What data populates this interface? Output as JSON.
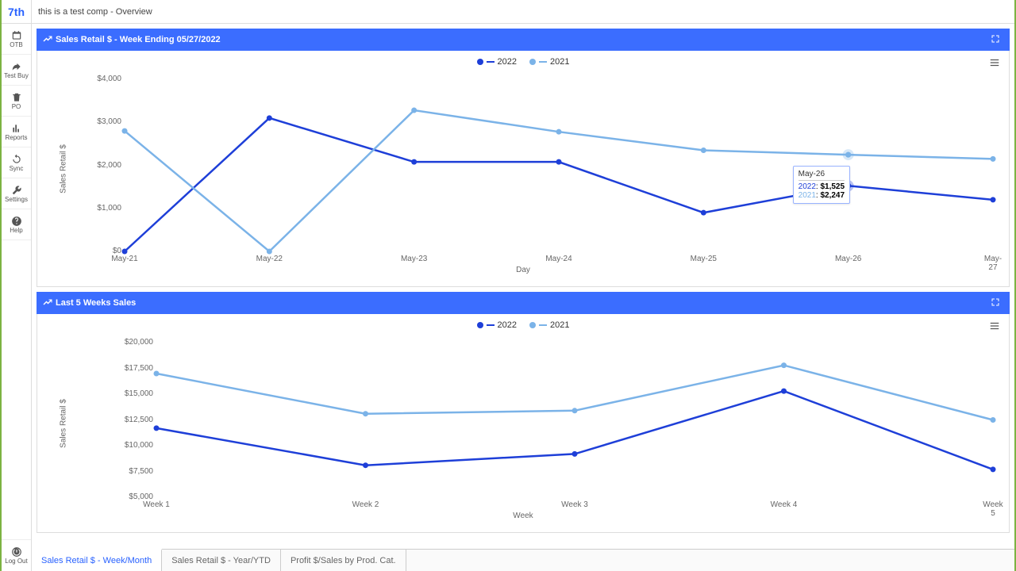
{
  "logo": "7th",
  "sidebar": {
    "items": [
      {
        "label": "OTB",
        "icon": "calendar"
      },
      {
        "label": "Test Buy",
        "icon": "share"
      },
      {
        "label": "PO",
        "icon": "trash"
      },
      {
        "label": "Reports",
        "icon": "bar"
      },
      {
        "label": "Sync",
        "icon": "refresh"
      },
      {
        "label": "Settings",
        "icon": "wrench"
      },
      {
        "label": "Help",
        "icon": "question"
      }
    ],
    "logout": "Log Out"
  },
  "title": "this is a test comp - Overview",
  "chart1": {
    "title": "Sales Retail $ - Week Ending 05/27/2022",
    "type": "line",
    "ylabel": "Sales Retail $",
    "xlabel": "Day",
    "categories": [
      "May-21",
      "May-22",
      "May-23",
      "May-24",
      "May-25",
      "May-26",
      "May-27"
    ],
    "yticks": [
      0,
      1000,
      2000,
      3000,
      4000
    ],
    "ytick_labels": [
      "$0",
      "$1,000",
      "$2,000",
      "$3,000",
      "$4,000"
    ],
    "ylim": [
      0,
      4000
    ],
    "series": [
      {
        "name": "2022",
        "color": "#1e3fd8",
        "values": [
          0,
          3100,
          2080,
          2080,
          900,
          1525,
          1200
        ]
      },
      {
        "name": "2021",
        "color": "#7bb3e8",
        "values": [
          2800,
          0,
          3280,
          2780,
          2350,
          2247,
          2150
        ]
      }
    ],
    "tooltip": {
      "category": "May-26",
      "rows": [
        {
          "name": "2022",
          "color": "#1e3fd8",
          "value": "$1,525"
        },
        {
          "name": "2021",
          "color": "#7bb3e8",
          "value": "$2,247"
        }
      ]
    },
    "highlight_index": 5,
    "line_width": 2.5,
    "marker_radius": 3.5,
    "background_color": "#ffffff"
  },
  "chart2": {
    "title": "Last 5 Weeks Sales",
    "type": "line",
    "ylabel": "Sales Retail $",
    "xlabel": "Week",
    "categories": [
      "Week 1",
      "Week 2",
      "Week 3",
      "Week 4",
      "Week 5"
    ],
    "yticks": [
      5000,
      7500,
      10000,
      12500,
      15000,
      17500,
      20000
    ],
    "ytick_labels": [
      "$5,000",
      "$7,500",
      "$10,000",
      "$12,500",
      "$15,000",
      "$17,500",
      "$20,000"
    ],
    "ylim": [
      5000,
      20000
    ],
    "series": [
      {
        "name": "2022",
        "color": "#1e3fd8",
        "values": [
          11700,
          8100,
          9200,
          15300,
          7700
        ]
      },
      {
        "name": "2021",
        "color": "#7bb3e8",
        "values": [
          17000,
          13100,
          13400,
          17800,
          12500
        ]
      }
    ],
    "line_width": 2.5,
    "marker_radius": 3.5,
    "background_color": "#ffffff"
  },
  "tabs": [
    {
      "label": "Sales Retail $ - Week/Month",
      "active": true
    },
    {
      "label": "Sales Retail $ - Year/YTD",
      "active": false
    },
    {
      "label": "Profit $/Sales by Prod. Cat.",
      "active": false
    }
  ]
}
